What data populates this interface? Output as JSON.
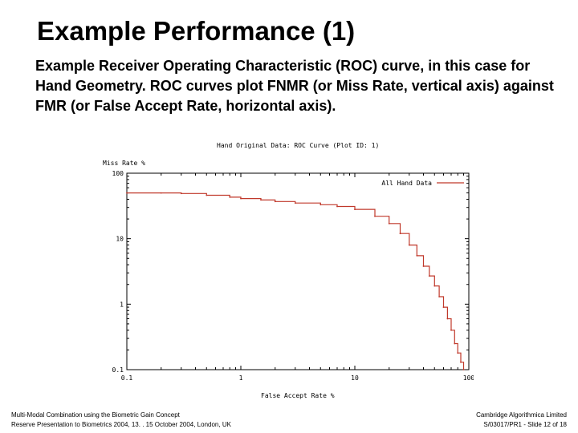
{
  "slide": {
    "title": "Example Performance (1)",
    "intro": "Example Receiver Operating Characteristic (ROC) curve, in this case for Hand Geometry.  ROC curves plot FNMR (or Miss Rate, vertical axis) against FMR (or False Accept Rate, horizontal axis).",
    "footer_left_line1": "Multi-Modal Combination using the Biometric Gain Concept",
    "footer_left_line2": "Reserve Presentation to Biometrics 2004, 13. . 15 October 2004, London, UK",
    "footer_right_line1": "Cambridge Algorithmica Limited",
    "footer_right_line2": "S/03017/PR1 - Slide 12 of 18"
  },
  "chart_data": {
    "type": "line",
    "title": "Hand Original Data: ROC Curve (Plot ID: 1)",
    "xlabel": "False Accept Rate %",
    "ylabel": "Miss Rate %",
    "xscale": "log",
    "yscale": "log",
    "xlim": [
      0.1,
      100
    ],
    "ylim": [
      0.1,
      100
    ],
    "xticks": [
      "0.1",
      "1",
      "10",
      "100"
    ],
    "yticks": [
      "100",
      "10",
      "1",
      "0.1"
    ],
    "grid": false,
    "legend": "top-right",
    "series": [
      {
        "name": "All Hand Data",
        "color": "#c0392b",
        "x": [
          0.1,
          0.2,
          0.3,
          0.5,
          0.8,
          1,
          1.5,
          2,
          3,
          5,
          7,
          10,
          15,
          20,
          25,
          30,
          35,
          40,
          45,
          50,
          55,
          60,
          65,
          70,
          75,
          80,
          85,
          90
        ],
        "y": [
          50,
          50,
          49,
          46,
          43,
          41,
          39,
          37,
          35,
          33,
          31,
          28,
          22,
          17,
          12,
          8,
          5.5,
          3.8,
          2.7,
          1.9,
          1.3,
          0.9,
          0.6,
          0.4,
          0.25,
          0.18,
          0.13,
          0.1
        ]
      }
    ]
  }
}
